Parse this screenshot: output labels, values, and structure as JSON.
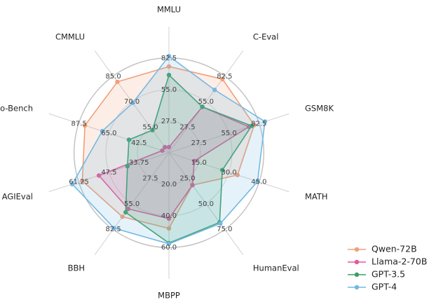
{
  "chart_data": {
    "type": "radar",
    "axes": [
      {
        "name": "MMLU",
        "lim": [
          0,
          110
        ],
        "ticks": [
          27.5,
          {
            "value": 55,
            "label": "55.0"
          },
          82.5
        ]
      },
      {
        "name": "C-Eval",
        "lim": [
          0,
          110
        ],
        "ticks": [
          27.5,
          {
            "value": 55,
            "label": "55.0"
          },
          82.5
        ]
      },
      {
        "name": "GSM8K",
        "lim": [
          0,
          110
        ],
        "ticks": [
          27.5,
          {
            "value": 55,
            "label": "55.0"
          },
          82.5
        ]
      },
      {
        "name": "MATH",
        "lim": [
          0,
          60
        ],
        "ticks": [
          {
            "value": 15,
            "label": "15.0"
          },
          {
            "value": 30,
            "label": "30.0"
          },
          {
            "value": 45,
            "label": "45.0"
          }
        ]
      },
      {
        "name": "HumanEval",
        "lim": [
          0,
          100
        ],
        "ticks": [
          {
            "value": 25,
            "label": "25.0"
          },
          {
            "value": 50,
            "label": "50.0"
          },
          {
            "value": 75,
            "label": "75.0"
          }
        ]
      },
      {
        "name": "MBPP",
        "lim": [
          0,
          80
        ],
        "ticks": [
          {
            "value": 20,
            "label": "20.0"
          },
          {
            "value": 40,
            "label": "40.0"
          },
          {
            "value": 60,
            "label": "60.0"
          }
        ]
      },
      {
        "name": "BBH",
        "lim": [
          0,
          110
        ],
        "ticks": [
          27.5,
          {
            "value": 55,
            "label": "55.0"
          },
          82.5
        ]
      },
      {
        "name": "AGIEval",
        "lim": [
          20,
          75
        ],
        "ticks": [
          33.75,
          47.5,
          61.25
        ]
      },
      {
        "name": "Gaokao-Bench",
        "lim": [
          20,
          110
        ],
        "ticks": [
          42.5,
          {
            "value": 65,
            "label": "65.0"
          },
          87.5
        ]
      },
      {
        "name": "CMMLU",
        "lim": [
          40,
          100
        ],
        "ticks": [
          {
            "value": 55,
            "label": "55.0"
          },
          {
            "value": 70,
            "label": "70.0"
          },
          {
            "value": 85,
            "label": "85.0"
          }
        ]
      }
    ],
    "series": [
      {
        "name": "Qwen-72B",
        "color": "#f19f78",
        "values": [
          75.2,
          79.4,
          78.2,
          34.3,
          31.7,
          48,
          69,
          59.7,
          83,
          81.7
        ]
      },
      {
        "name": "Llama-2-70B",
        "color": "#e4589b",
        "values": [
          4.9,
          49.5,
          73.3,
          12.7,
          31.7,
          41.8,
          60.5,
          52.1,
          25,
          43.3
        ]
      },
      {
        "name": "GPT-3.5",
        "color": "#3a9f68",
        "values": [
          67.8,
          49.5,
          75.8,
          26.7,
          68.3,
          57.3,
          64.2,
          39,
          50,
          53.3
        ]
      },
      {
        "name": "GPT-4",
        "color": "#74b9e3",
        "values": [
          84.3,
          67.8,
          88,
          44.3,
          69.4,
          57.8,
          81.3,
          64.3,
          70,
          69.3
        ]
      }
    ],
    "legend": "lower right"
  }
}
